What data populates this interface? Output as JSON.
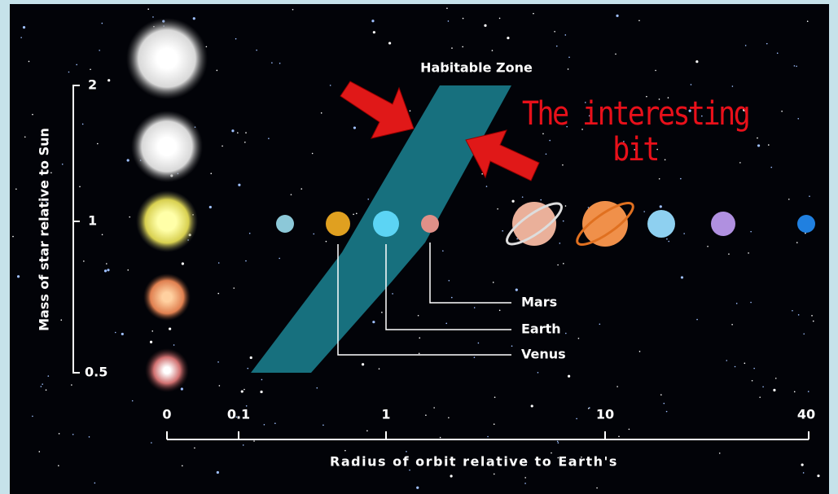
{
  "diagram": {
    "title": "Habitable Zone",
    "annotation": "The interesting bit",
    "y_axis": {
      "label": "Mass of star relative to Sun",
      "ticks": [
        "2",
        "1",
        "0.5"
      ]
    },
    "x_axis": {
      "label": "Radius of orbit relative to Earth's",
      "ticks": [
        "0",
        "0.1",
        "1",
        "10",
        "40"
      ]
    },
    "planet_labels": [
      "Mars",
      "Earth",
      "Venus"
    ]
  }
}
